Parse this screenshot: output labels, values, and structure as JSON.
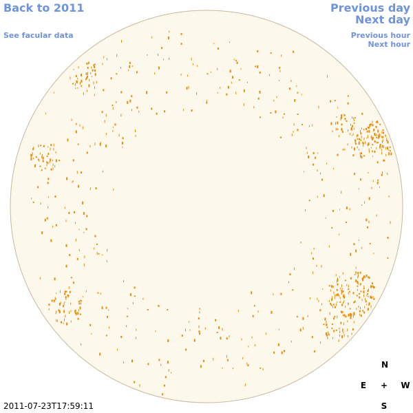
{
  "navigation": {
    "back": "Back to 2011",
    "facular_data": "See facular data",
    "previous_day": "Previous day",
    "next_day": "Next day",
    "previous_hour": "Previous hour",
    "next_hour": "Next hour"
  },
  "timestamp": "2011-07-23T17:59:11",
  "compass": {
    "north": "N",
    "east": "E",
    "center": "+",
    "west": "W",
    "south": "S"
  }
}
